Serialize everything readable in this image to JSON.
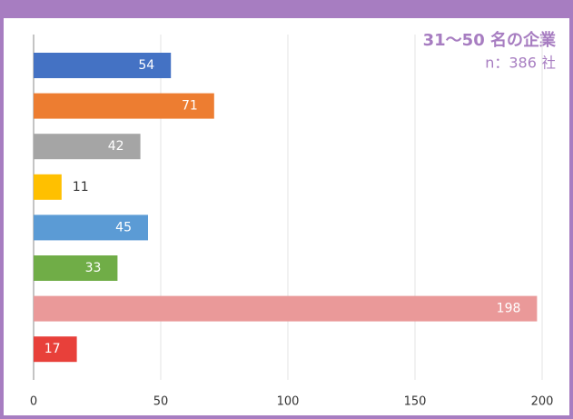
{
  "chart_data": {
    "type": "hbar",
    "title": "31〜50 名の企業",
    "subtitle": "n：386 社",
    "categories": [
      null,
      null,
      null,
      null,
      null,
      null,
      null,
      null
    ],
    "values": [
      54,
      71,
      42,
      11,
      45,
      33,
      198,
      17
    ],
    "colors": [
      "#4472c4",
      "#ed7d31",
      "#a5a5a5",
      "#ffc000",
      "#5b9bd5",
      "#70ad47",
      "#ea9999",
      "#e8403a"
    ],
    "xlim": [
      0,
      200
    ],
    "xticks": [
      0,
      50,
      100,
      150,
      200
    ],
    "grid": true
  }
}
